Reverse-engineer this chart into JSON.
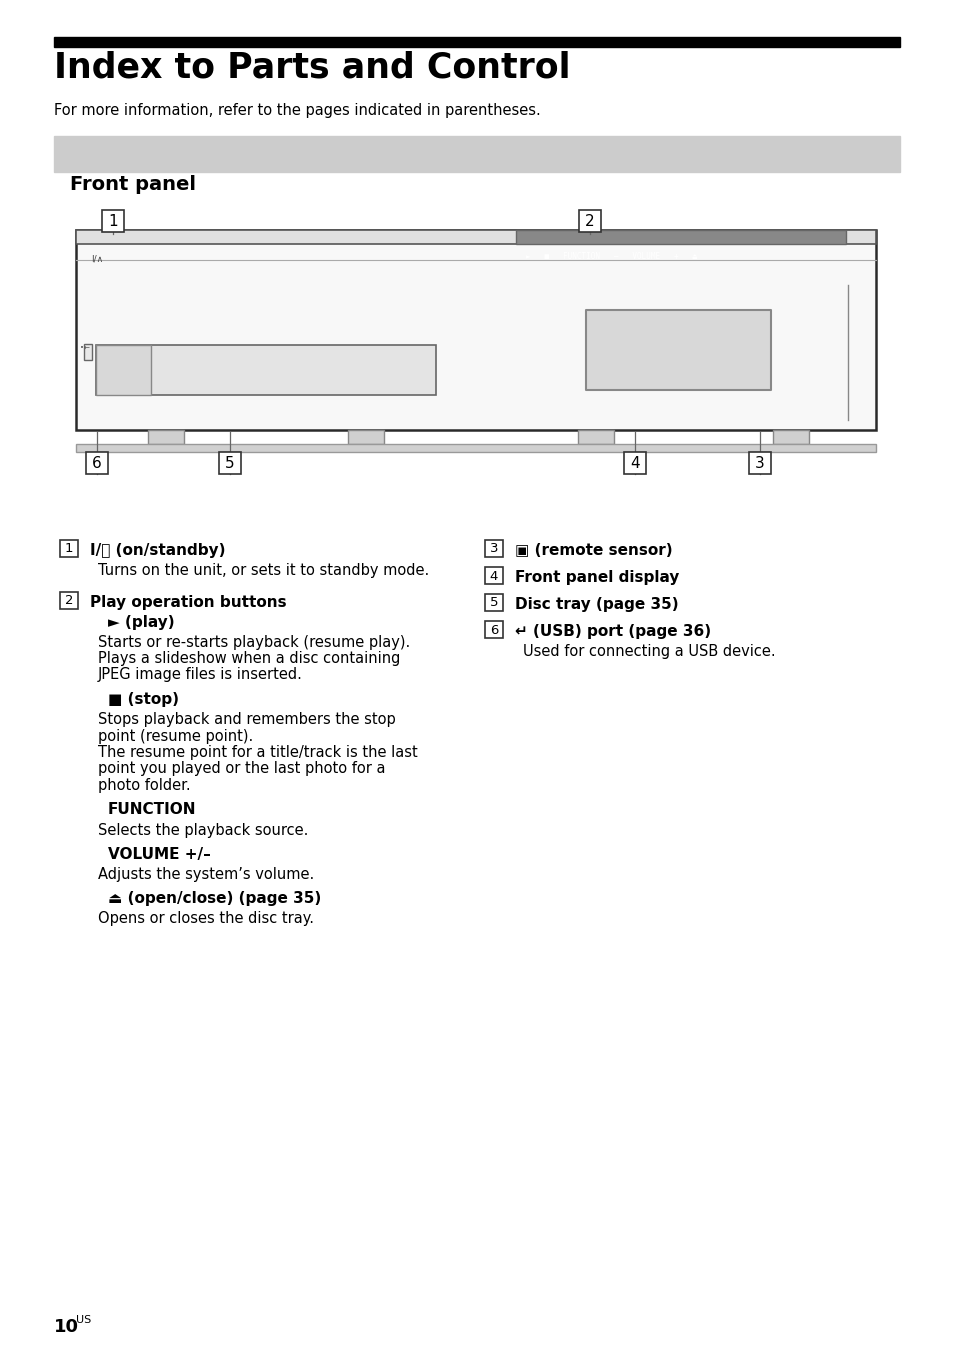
{
  "title": "Index to Parts and Control",
  "subtitle": "For more information, refer to the pages indicated in parentheses.",
  "section_header": "Front panel",
  "section_header_bg": "#d0d0d0",
  "top_bar_color": "#000000",
  "page_bg": "#ffffff",
  "left_col_items": [
    {
      "num": "1",
      "heading": "I/⏻ (on/standby)",
      "lines": [
        {
          "text": "Turns on the unit, or sets it to standby mode.",
          "bold": false,
          "sub_heading": false,
          "gap_after": true
        }
      ]
    },
    {
      "num": "2",
      "heading": "Play operation buttons",
      "lines": [
        {
          "text": "► (play)",
          "bold": true,
          "sub_heading": true,
          "gap_after": false
        },
        {
          "text": "Starts or re-starts playback (resume play).",
          "bold": false,
          "sub_heading": false,
          "gap_after": false
        },
        {
          "text": "Plays a slideshow when a disc containing",
          "bold": false,
          "sub_heading": false,
          "gap_after": false
        },
        {
          "text": "JPEG image files is inserted.",
          "bold": false,
          "sub_heading": false,
          "gap_after": true
        },
        {
          "text": "■ (stop)",
          "bold": true,
          "sub_heading": true,
          "gap_after": false
        },
        {
          "text": "Stops playback and remembers the stop",
          "bold": false,
          "sub_heading": false,
          "gap_after": false
        },
        {
          "text": "point (resume point).",
          "bold": false,
          "sub_heading": false,
          "gap_after": false
        },
        {
          "text": "The resume point for a title/track is the last",
          "bold": false,
          "sub_heading": false,
          "gap_after": false
        },
        {
          "text": "point you played or the last photo for a",
          "bold": false,
          "sub_heading": false,
          "gap_after": false
        },
        {
          "text": "photo folder.",
          "bold": false,
          "sub_heading": false,
          "gap_after": true
        },
        {
          "text": "FUNCTION",
          "bold": true,
          "sub_heading": true,
          "gap_after": false
        },
        {
          "text": "Selects the playback source.",
          "bold": false,
          "sub_heading": false,
          "gap_after": true
        },
        {
          "text": "VOLUME +/–",
          "bold": true,
          "sub_heading": true,
          "gap_after": false
        },
        {
          "text": "Adjusts the system’s volume.",
          "bold": false,
          "sub_heading": false,
          "gap_after": true
        },
        {
          "text": "⏏ (open/close) (page 35)",
          "bold": true,
          "sub_heading": true,
          "gap_after": false
        },
        {
          "text": "Opens or closes the disc tray.",
          "bold": false,
          "sub_heading": false,
          "gap_after": false
        }
      ]
    }
  ],
  "right_col_items": [
    {
      "num": "3",
      "heading": "▣ (remote sensor)",
      "lines": []
    },
    {
      "num": "4",
      "heading": "Front panel display",
      "lines": []
    },
    {
      "num": "5",
      "heading": "Disc tray (page 35)",
      "lines": []
    },
    {
      "num": "6",
      "heading": "↵ (USB) port (page 36)",
      "lines": [
        {
          "text": "Used for connecting a USB device.",
          "bold": false,
          "sub_heading": false,
          "gap_after": false
        }
      ]
    }
  ],
  "page_number": "10",
  "page_number_suffix": "US"
}
